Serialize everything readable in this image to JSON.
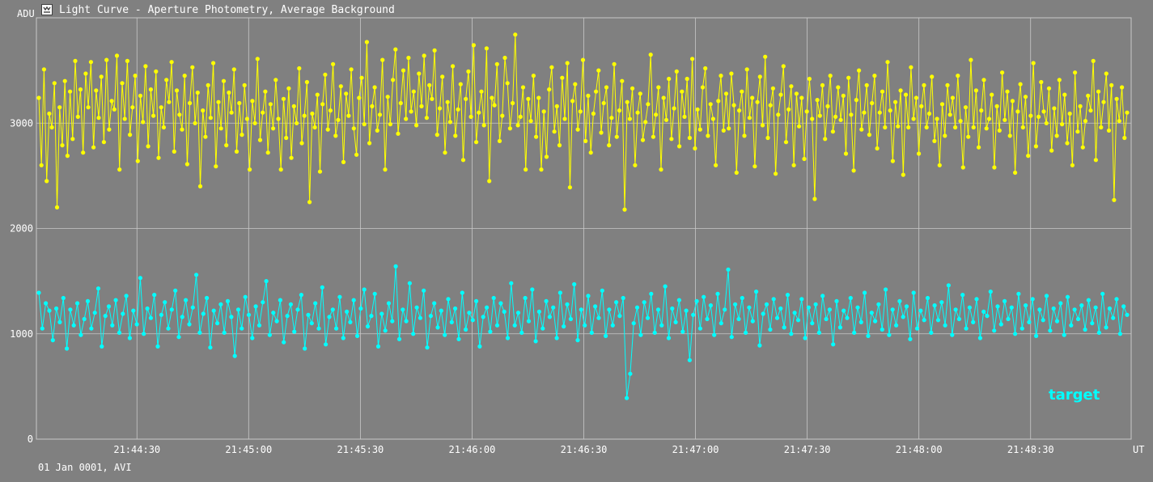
{
  "window": {
    "title": "Light Curve - Aperture Photometry, Average Background",
    "icon": "light-curve-app-icon"
  },
  "footer": {
    "text": "01 Jan 0001, AVI"
  },
  "colors": {
    "background": "#808080",
    "grid": "#c8c8c8",
    "comparison": "#ffff00",
    "target": "#00ffff"
  },
  "chart_data": {
    "type": "line",
    "title": "Light Curve - Aperture Photometry, Average Background",
    "xlabel": "UT",
    "ylabel": "ADU",
    "xlim": [
      "21:44:03",
      "21:48:57"
    ],
    "ylim": [
      0,
      4000
    ],
    "x_ticks": [
      "21:44:30",
      "21:45:00",
      "21:45:30",
      "21:46:00",
      "21:46:30",
      "21:47:00",
      "21:47:30",
      "21:48:00",
      "21:48:30"
    ],
    "y_ticks": [
      0,
      1000,
      2000,
      3000
    ],
    "grid": true,
    "markers": true,
    "sample_interval_s": 0.32,
    "series": [
      {
        "name": "",
        "color": "#ffff00",
        "mean": 3000,
        "values": [
          3240,
          2600,
          3510,
          2450,
          3090,
          2960,
          3380,
          2200,
          3150,
          2790,
          3400,
          2690,
          3300,
          2850,
          3590,
          3060,
          3320,
          2720,
          3470,
          3150,
          3580,
          2770,
          3310,
          3050,
          3440,
          2820,
          3600,
          2940,
          3210,
          3130,
          3640,
          2560,
          3380,
          3040,
          3590,
          2890,
          3150,
          3450,
          2640,
          3260,
          3010,
          3540,
          2780,
          3320,
          3070,
          3490,
          2670,
          3150,
          2960,
          3410,
          3200,
          3580,
          2730,
          3310,
          3080,
          2940,
          3450,
          2610,
          3190,
          3530,
          3000,
          3290,
          2400,
          3120,
          2870,
          3360,
          3050,
          3570,
          2590,
          3200,
          2950,
          3400,
          2790,
          3290,
          3100,
          3510,
          2730,
          3190,
          2890,
          3360,
          3040,
          2560,
          3210,
          3000,
          3610,
          2840,
          3100,
          3300,
          2720,
          3180,
          2950,
          3410,
          3040,
          2560,
          3230,
          2860,
          3330,
          2670,
          3160,
          3000,
          3520,
          2810,
          3070,
          3390,
          2250,
          3090,
          2960,
          3270,
          2540,
          3180,
          3460,
          2940,
          3120,
          3560,
          2880,
          3030,
          3350,
          2630,
          3280,
          3070,
          3510,
          2950,
          2700,
          3240,
          3430,
          2990,
          3770,
          2810,
          3160,
          3340,
          2930,
          3080,
          3600,
          2560,
          3250,
          2990,
          3410,
          3700,
          2900,
          3190,
          3500,
          3040,
          3620,
          3110,
          3300,
          2980,
          3470,
          3160,
          3640,
          3050,
          3360,
          3230,
          3690,
          2890,
          3140,
          3440,
          2720,
          3200,
          3010,
          3540,
          2880,
          3130,
          3370,
          2650,
          3230,
          3490,
          3060,
          3740,
          2820,
          3100,
          3300,
          2980,
          3710,
          2450,
          3240,
          3170,
          3560,
          2830,
          3070,
          3620,
          3380,
          2950,
          3190,
          3840,
          2980,
          3060,
          3340,
          2560,
          3230,
          3020,
          3450,
          2870,
          3240,
          2560,
          3110,
          2680,
          3320,
          3530,
          2920,
          3160,
          2790,
          3430,
          3040,
          3570,
          2390,
          3210,
          3370,
          2940,
          3110,
          3600,
          2830,
          3260,
          2720,
          3090,
          3300,
          3500,
          2910,
          3190,
          3340,
          2790,
          3050,
          3560,
          2870,
          3120,
          3400,
          2180,
          3200,
          3040,
          3330,
          2600,
          3100,
          3280,
          2840,
          3010,
          3180,
          3650,
          2870,
          3080,
          3340,
          2560,
          3240,
          3030,
          3420,
          2850,
          3140,
          3490,
          2780,
          3300,
          3060,
          3420,
          2860,
          3610,
          2760,
          3130,
          2940,
          3340,
          3520,
          2880,
          3180,
          3040,
          2600,
          3210,
          3450,
          2930,
          3280,
          2950,
          3470,
          3170,
          2530,
          3120,
          3300,
          2880,
          3510,
          3050,
          3240,
          2590,
          3200,
          3440,
          2980,
          3630,
          2860,
          3170,
          3330,
          2520,
          3080,
          3270,
          3540,
          2820,
          3130,
          3350,
          2600,
          3280,
          2970,
          3240,
          2660,
          3110,
          3420,
          3040,
          2280,
          3220,
          3070,
          3360,
          2850,
          3160,
          3450,
          2920,
          3060,
          3340,
          3030,
          3260,
          2710,
          3430,
          3080,
          2550,
          3220,
          3500,
          2940,
          3100,
          3360,
          2890,
          3190,
          3450,
          2760,
          3100,
          3300,
          2960,
          3580,
          3120,
          2640,
          3200,
          2970,
          3310,
          2510,
          3270,
          2960,
          3530,
          3040,
          3240,
          2710,
          3160,
          3360,
          2960,
          3090,
          3440,
          2830,
          3040,
          2600,
          3180,
          2880,
          3360,
          3080,
          3240,
          2960,
          3450,
          3020,
          2580,
          3150,
          2870,
          3600,
          2960,
          3310,
          2770,
          3120,
          3410,
          2950,
          3040,
          3270,
          2580,
          3160,
          2930,
          3480,
          3030,
          3300,
          2880,
          3210,
          2530,
          3110,
          3370,
          2960,
          3250,
          2690,
          3070,
          3570,
          2780,
          3060,
          3390,
          3110,
          3000,
          3330,
          2740,
          3140,
          2880,
          3410,
          2990,
          3270,
          2810,
          3090,
          2600,
          3480,
          2920,
          3160,
          2770,
          3020,
          3260,
          3120,
          3590,
          2650,
          3300,
          2960,
          3200,
          3470,
          2930,
          3360,
          2270,
          3230,
          3020,
          3340,
          2860,
          3100
        ]
      },
      {
        "name": "target",
        "color": "#00ffff",
        "mean": 1150,
        "values": [
          1390,
          1050,
          1290,
          1220,
          940,
          1240,
          1110,
          1340,
          860,
          1230,
          1080,
          1290,
          990,
          1140,
          1310,
          1050,
          1200,
          1430,
          880,
          1170,
          1260,
          1080,
          1320,
          1010,
          1190,
          1360,
          960,
          1220,
          1090,
          1530,
          1000,
          1240,
          1150,
          1370,
          880,
          1180,
          1300,
          1050,
          1230,
          1410,
          970,
          1160,
          1320,
          1090,
          1250,
          1560,
          1010,
          1190,
          1340,
          870,
          1220,
          1100,
          1280,
          1010,
          1310,
          1160,
          790,
          1230,
          1050,
          1350,
          1180,
          960,
          1260,
          1080,
          1300,
          1500,
          990,
          1200,
          1120,
          1320,
          920,
          1170,
          1280,
          1020,
          1230,
          1370,
          860,
          1180,
          1100,
          1290,
          1050,
          1440,
          900,
          1160,
          1230,
          1050,
          1350,
          960,
          1210,
          1110,
          1320,
          980,
          1240,
          1420,
          1070,
          1170,
          1380,
          880,
          1190,
          1030,
          1290,
          1120,
          1640,
          950,
          1230,
          1120,
          1480,
          1000,
          1250,
          1150,
          1410,
          870,
          1170,
          1290,
          1060,
          1220,
          990,
          1330,
          1110,
          1240,
          950,
          1390,
          1040,
          1200,
          1130,
          1310,
          880,
          1160,
          1250,
          1020,
          1340,
          1080,
          1290,
          1210,
          960,
          1480,
          1080,
          1200,
          1010,
          1340,
          1120,
          1420,
          930,
          1210,
          1050,
          1310,
          1160,
          1250,
          960,
          1390,
          1070,
          1280,
          1140,
          1470,
          940,
          1230,
          1080,
          1360,
          1010,
          1260,
          1150,
          1410,
          980,
          1230,
          1080,
          1300,
          1170,
          1340,
          390,
          620,
          1100,
          1250,
          990,
          1300,
          1150,
          1380,
          1010,
          1230,
          1080,
          1450,
          960,
          1240,
          1110,
          1320,
          1020,
          1220,
          750,
          1180,
          1310,
          1050,
          1350,
          1140,
          1270,
          990,
          1380,
          1100,
          1230,
          1610,
          970,
          1280,
          1140,
          1340,
          1010,
          1250,
          1120,
          1400,
          890,
          1190,
          1280,
          1040,
          1330,
          1150,
          1240,
          1060,
          1370,
          1000,
          1200,
          1130,
          1330,
          960,
          1250,
          1100,
          1280,
          1010,
          1360,
          1140,
          1230,
          900,
          1310,
          1060,
          1220,
          1150,
          1340,
          1010,
          1250,
          1110,
          1390,
          980,
          1200,
          1120,
          1280,
          1040,
          1420,
          990,
          1230,
          1080,
          1310,
          1160,
          1260,
          950,
          1390,
          1050,
          1220,
          1130,
          1340,
          1010,
          1270,
          1130,
          1300,
          1080,
          1460,
          990,
          1230,
          1140,
          1370,
          1050,
          1250,
          1110,
          1330,
          960,
          1210,
          1170,
          1400,
          1030,
          1260,
          1090,
          1310,
          1140,
          1250,
          1000,
          1380,
          1050,
          1270,
          1110,
          1330,
          980,
          1230,
          1130,
          1360,
          1030,
          1240,
          1120,
          1290,
          990,
          1350,
          1080,
          1230,
          1140,
          1270,
          1040,
          1320,
          1100,
          1250,
          1010,
          1380,
          1060,
          1240,
          1150,
          1330,
          1000,
          1260,
          1180
        ]
      }
    ]
  }
}
